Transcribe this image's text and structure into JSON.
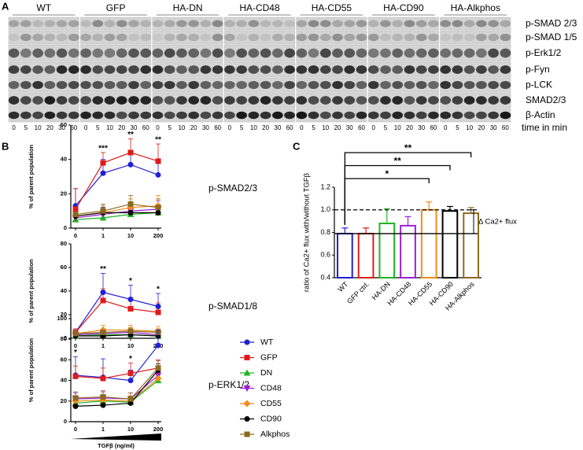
{
  "blot": {
    "panel": "A",
    "groups": [
      "WT",
      "GFP",
      "HA-DN",
      "HA-CD48",
      "HA-CD55",
      "HA-CD90",
      "HA-Alkphos"
    ],
    "rows": [
      "p-SMAD 2/3",
      "p-SMAD 1/5",
      "p-Erk1/2",
      "p-Fyn",
      "p-LCK",
      "SMAD2/3",
      "β-Actin"
    ],
    "lanes": [
      "0",
      "5",
      "10",
      "20",
      "30",
      "60"
    ],
    "lane_label": "time in min"
  },
  "chart_data": [
    {
      "type": "line",
      "panel": "B",
      "title": "p-SMAD2/3",
      "ylabel": "% of parent population",
      "categories": [
        "0",
        "1",
        "10",
        "200"
      ],
      "ylim": [
        0,
        60
      ],
      "yticks": [
        0,
        20,
        40,
        60
      ],
      "annotations": [
        null,
        "***",
        "**",
        "**"
      ],
      "series": [
        {
          "name": "WT",
          "color": "#1f1fd6",
          "marker": "circle",
          "values": [
            13,
            32,
            37,
            31
          ],
          "errors": [
            10,
            8,
            7,
            7
          ]
        },
        {
          "name": "GFP",
          "color": "#e01b1b",
          "marker": "square",
          "values": [
            11,
            38,
            44,
            39
          ],
          "errors": [
            12,
            6,
            8,
            10
          ]
        },
        {
          "name": "DN",
          "color": "#1fb51f",
          "marker": "triangle-up",
          "values": [
            5,
            6,
            8,
            9
          ],
          "errors": [
            4,
            3,
            4,
            4
          ]
        },
        {
          "name": "CD48",
          "color": "#9b1fd6",
          "marker": "triangle-down",
          "values": [
            6,
            8,
            10,
            11
          ],
          "errors": [
            4,
            4,
            5,
            5
          ]
        },
        {
          "name": "CD55",
          "color": "#f28c1a",
          "marker": "diamond",
          "values": [
            7,
            9,
            12,
            13
          ],
          "errors": [
            5,
            4,
            5,
            6
          ]
        },
        {
          "name": "CD90",
          "color": "#000000",
          "marker": "circle",
          "values": [
            7,
            9,
            9,
            9
          ],
          "errors": [
            3,
            3,
            3,
            3
          ]
        },
        {
          "name": "Alkphos",
          "color": "#8b6a1f",
          "marker": "square",
          "values": [
            8,
            10,
            14,
            12
          ],
          "errors": [
            5,
            4,
            5,
            5
          ]
        }
      ]
    },
    {
      "type": "line",
      "title": "p-SMAD1/8",
      "ylabel": "% of parent population",
      "categories": [
        "0",
        "1",
        "10",
        "200"
      ],
      "ylim": [
        0,
        80
      ],
      "yticks": [
        0,
        20,
        40,
        60,
        80
      ],
      "annotations": [
        null,
        "**",
        "*",
        "*"
      ],
      "series": [
        {
          "name": "WT",
          "color": "#1f1fd6",
          "marker": "circle",
          "values": [
            5,
            39,
            33,
            27
          ],
          "errors": [
            3,
            16,
            12,
            11
          ]
        },
        {
          "name": "GFP",
          "color": "#e01b1b",
          "marker": "square",
          "values": [
            5,
            32,
            25,
            22
          ],
          "errors": [
            3,
            10,
            9,
            8
          ]
        },
        {
          "name": "DN",
          "color": "#1fb51f",
          "marker": "triangle-up",
          "values": [
            2,
            3,
            3,
            2
          ],
          "errors": [
            2,
            3,
            3,
            2
          ]
        },
        {
          "name": "CD48",
          "color": "#9b1fd6",
          "marker": "triangle-down",
          "values": [
            3,
            4,
            5,
            3
          ],
          "errors": [
            2,
            3,
            3,
            3
          ]
        },
        {
          "name": "CD55",
          "color": "#f28c1a",
          "marker": "diamond",
          "values": [
            4,
            7,
            7,
            6
          ],
          "errors": [
            3,
            4,
            4,
            4
          ]
        },
        {
          "name": "CD90",
          "color": "#000000",
          "marker": "circle",
          "values": [
            2,
            2,
            3,
            2
          ],
          "errors": [
            1,
            2,
            2,
            2
          ]
        },
        {
          "name": "Alkphos",
          "color": "#8b6a1f",
          "marker": "square",
          "values": [
            4,
            5,
            6,
            5
          ],
          "errors": [
            3,
            3,
            3,
            3
          ]
        }
      ]
    },
    {
      "type": "line",
      "title": "p-ERK1/2",
      "ylabel": "% of parent population",
      "xlabel": "TGFβ (ng/ml)",
      "categories": [
        "0",
        "1",
        "10",
        "200"
      ],
      "ylim": [
        0,
        100
      ],
      "yticks": [
        0,
        20,
        40,
        60,
        80,
        100
      ],
      "annotations": [
        "*",
        null,
        "*",
        null
      ],
      "legend": "right",
      "series": [
        {
          "name": "WT",
          "color": "#1f1fd6",
          "marker": "circle",
          "values": [
            45,
            43,
            40,
            74
          ],
          "errors": [
            18,
            18,
            10,
            15
          ]
        },
        {
          "name": "GFP",
          "color": "#e01b1b",
          "marker": "square",
          "values": [
            44,
            42,
            47,
            52
          ],
          "errors": [
            10,
            10,
            10,
            8
          ]
        },
        {
          "name": "DN",
          "color": "#1fb51f",
          "marker": "triangle-up",
          "values": [
            18,
            20,
            19,
            40
          ],
          "errors": [
            5,
            5,
            5,
            6
          ]
        },
        {
          "name": "CD48",
          "color": "#9b1fd6",
          "marker": "triangle-down",
          "values": [
            22,
            23,
            22,
            45
          ],
          "errors": [
            6,
            6,
            6,
            7
          ]
        },
        {
          "name": "CD55",
          "color": "#f28c1a",
          "marker": "diamond",
          "values": [
            20,
            21,
            20,
            42
          ],
          "errors": [
            5,
            5,
            5,
            6
          ]
        },
        {
          "name": "CD90",
          "color": "#000000",
          "marker": "circle",
          "values": [
            15,
            16,
            18,
            50
          ],
          "errors": [
            4,
            4,
            4,
            6
          ]
        },
        {
          "name": "Alkphos",
          "color": "#8b6a1f",
          "marker": "square",
          "values": [
            23,
            24,
            22,
            52
          ],
          "errors": [
            6,
            6,
            6,
            7
          ]
        }
      ]
    },
    {
      "type": "bar",
      "panel": "C",
      "ylabel": "ratio of Ca2+ flux with/without TGFβ",
      "categories": [
        "WT",
        "GFP ctrl.",
        "HA-DN",
        "HA-CD48",
        "HA-CD55",
        "HA-CD90",
        "HA-Alkphos"
      ],
      "values": [
        0.79,
        0.79,
        0.88,
        0.86,
        1.0,
        0.99,
        0.97
      ],
      "errors": [
        0.05,
        0.05,
        0.13,
        0.08,
        0.07,
        0.04,
        0.05
      ],
      "colors": [
        "#1f1fd6",
        "#e01b1b",
        "#1fb51f",
        "#9b1fd6",
        "#f28c1a",
        "#000000",
        "#8b6a1f"
      ],
      "ylim": [
        0.4,
        1.2
      ],
      "yticks": [
        0.4,
        0.6,
        0.8,
        {
          "value": 1,
          "label": "1.0"
        },
        1.2
      ],
      "hlines": [
        {
          "value": 1,
          "style": "dashed"
        },
        {
          "value": 0.79,
          "style": "solid"
        }
      ],
      "span_label": "Δ Ca2+ flux",
      "comparisons": [
        {
          "from": "WT",
          "to": "HA-CD55",
          "label": "*"
        },
        {
          "from": "WT",
          "to": "HA-CD90",
          "label": "**"
        },
        {
          "from": "WT",
          "to": "HA-Alkphos",
          "label": "**"
        }
      ]
    }
  ]
}
